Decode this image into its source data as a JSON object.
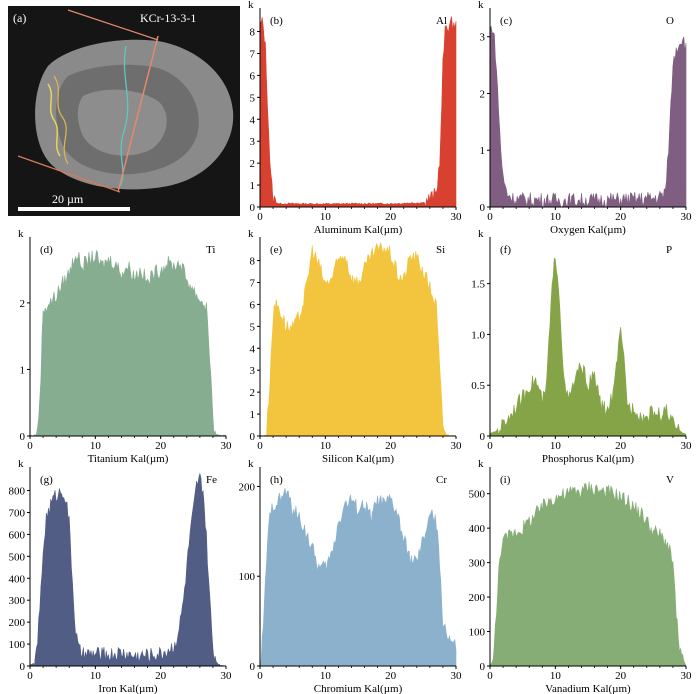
{
  "sample_label": "KCr-13-3-1",
  "scale_bar_label": "20 µm",
  "panel_a_letter": "(a)",
  "colors": {
    "al": "#d8412f",
    "o": "#7f5e81",
    "ti": "#87ad91",
    "si": "#f3c43d",
    "p": "#85a447",
    "fe": "#525d86",
    "cr": "#8cb1cc",
    "v": "#86ad75"
  },
  "chart_data": [
    {
      "id": "b",
      "letter": "(b)",
      "element": "Al",
      "type": "area",
      "xlabel": "Aluminum Kal(µm)",
      "ylabel": "k",
      "xlim": [
        0,
        30
      ],
      "ylim": [
        0,
        8.8
      ],
      "xticks": [
        0,
        10,
        20,
        30
      ],
      "yticks": [
        0,
        1,
        2,
        3,
        4,
        5,
        6,
        7,
        8
      ],
      "ytick_labels": [
        "0",
        "1",
        "2",
        "3",
        "4",
        "5",
        "6",
        "7",
        "8"
      ],
      "color_key": "al",
      "x": [
        0,
        0.4,
        0.8,
        1.2,
        1.6,
        2,
        2.5,
        3,
        5,
        10,
        15,
        20,
        25,
        27,
        27.6,
        28,
        28.4,
        28.8,
        29.2,
        29.6,
        30
      ],
      "y": [
        8.3,
        8.4,
        7.5,
        4.5,
        1.5,
        0.4,
        0.2,
        0.15,
        0.15,
        0.14,
        0.15,
        0.15,
        0.2,
        0.6,
        2.5,
        6.5,
        8.2,
        8.3,
        8.3,
        8.4,
        8.3
      ]
    },
    {
      "id": "c",
      "letter": "(c)",
      "element": "O",
      "type": "area",
      "xlabel": "Oxygen Kal(µm)",
      "ylabel": "k",
      "xlim": [
        0,
        30
      ],
      "ylim": [
        0,
        3.4
      ],
      "xticks": [
        0,
        10,
        20,
        30
      ],
      "yticks": [
        0,
        1,
        2,
        3
      ],
      "ytick_labels": [
        "0",
        "1",
        "2",
        "3"
      ],
      "color_key": "o",
      "x": [
        0,
        0.4,
        0.8,
        1.2,
        1.6,
        2,
        2.6,
        3.5,
        5,
        10,
        15,
        20,
        25,
        26.5,
        27,
        27.5,
        28,
        28.5,
        29,
        29.5,
        30
      ],
      "y": [
        3.1,
        3.2,
        2.8,
        2.0,
        1.1,
        0.5,
        0.25,
        0.15,
        0.13,
        0.12,
        0.12,
        0.13,
        0.15,
        0.2,
        0.4,
        1.4,
        2.5,
        2.8,
        2.9,
        3.0,
        2.8
      ]
    },
    {
      "id": "d",
      "letter": "(d)",
      "element": "Ti",
      "type": "area",
      "xlabel": "Titanium Kal(µm)",
      "ylabel": "k",
      "xlim": [
        0,
        30
      ],
      "ylim": [
        0,
        2.9
      ],
      "xticks": [
        0,
        10,
        20,
        30
      ],
      "yticks": [
        0,
        1,
        2
      ],
      "ytick_labels": [
        "0",
        "1",
        "2"
      ],
      "color_key": "ti",
      "x": [
        0,
        1,
        1.5,
        2,
        3,
        4,
        5,
        6,
        7,
        8,
        9,
        10,
        11,
        12,
        13,
        14,
        15,
        16,
        17,
        18,
        19,
        20,
        21,
        22,
        23,
        24,
        25,
        26,
        27,
        27.5,
        28,
        28.5,
        30
      ],
      "y": [
        0,
        0.02,
        0.5,
        1.9,
        2.0,
        2.1,
        2.3,
        2.45,
        2.75,
        2.55,
        2.65,
        2.7,
        2.55,
        2.65,
        2.6,
        2.45,
        2.55,
        2.4,
        2.5,
        2.3,
        2.45,
        2.5,
        2.6,
        2.55,
        2.6,
        2.35,
        2.2,
        2.05,
        1.95,
        1.2,
        0.2,
        0.02,
        0
      ]
    },
    {
      "id": "e",
      "letter": "(e)",
      "element": "Si",
      "type": "area",
      "xlabel": "Silicon Kal(µm)",
      "ylabel": "k",
      "xlim": [
        0,
        30
      ],
      "ylim": [
        0,
        8.8
      ],
      "xticks": [
        0,
        10,
        20,
        30
      ],
      "yticks": [
        0,
        1,
        2,
        3,
        4,
        5,
        6,
        7,
        8
      ],
      "ytick_labels": [
        "0",
        "1",
        "2",
        "3",
        "4",
        "5",
        "6",
        "7",
        "8"
      ],
      "color_key": "si",
      "x": [
        0,
        1,
        1.5,
        2,
        2.5,
        3,
        4,
        5,
        6,
        7,
        8,
        9,
        10,
        11,
        12,
        13,
        14,
        15,
        16,
        17,
        18,
        19,
        20,
        21,
        22,
        23,
        24,
        25,
        26,
        27,
        27.5,
        28,
        28.5,
        30
      ],
      "y": [
        0,
        0.05,
        2.5,
        5.5,
        6.1,
        5.8,
        5.0,
        4.9,
        5.4,
        6.6,
        8.5,
        7.8,
        6.9,
        7.2,
        8.0,
        8.3,
        7.2,
        7.0,
        7.6,
        8.2,
        8.5,
        8.6,
        8.3,
        7.4,
        7.1,
        8.2,
        8.1,
        7.5,
        6.8,
        5.9,
        3.0,
        0.5,
        0.05,
        0
      ]
    },
    {
      "id": "f",
      "letter": "(f)",
      "element": "P",
      "type": "area",
      "xlabel": "Phosphorus Kal(µm)",
      "ylabel": "k",
      "xlim": [
        0,
        30
      ],
      "ylim": [
        0,
        1.9
      ],
      "xticks": [
        0,
        10,
        20,
        30
      ],
      "yticks": [
        0,
        0.5,
        1,
        1.5
      ],
      "ytick_labels": [
        "0",
        "0.5",
        "1.0",
        "1.5"
      ],
      "color_key": "p",
      "x": [
        0,
        1,
        2,
        3,
        4,
        5,
        6,
        7,
        8,
        8.5,
        9,
        9.5,
        10,
        10.5,
        11,
        11.5,
        12,
        13,
        14,
        15,
        16,
        17,
        18,
        19,
        19.5,
        20,
        20.5,
        21,
        21.5,
        22,
        23,
        24,
        25,
        26,
        27,
        28,
        29,
        30
      ],
      "y": [
        0.02,
        0.05,
        0.12,
        0.2,
        0.3,
        0.38,
        0.5,
        0.55,
        0.35,
        0.4,
        0.9,
        1.45,
        1.8,
        1.5,
        0.9,
        0.45,
        0.35,
        0.55,
        0.7,
        0.5,
        0.6,
        0.3,
        0.25,
        0.45,
        0.8,
        1.0,
        0.75,
        0.35,
        0.25,
        0.3,
        0.2,
        0.18,
        0.25,
        0.2,
        0.25,
        0.12,
        0.05,
        0.02
      ]
    },
    {
      "id": "g",
      "letter": "(g)",
      "element": "Fe",
      "type": "area",
      "xlabel": "Iron Kal(µm)",
      "ylabel": "k",
      "xlim": [
        0,
        30
      ],
      "ylim": [
        0,
        880
      ],
      "xticks": [
        0,
        10,
        20,
        30
      ],
      "yticks": [
        0,
        100,
        200,
        300,
        400,
        500,
        600,
        700,
        800
      ],
      "ytick_labels": [
        "0",
        "100",
        "200",
        "300",
        "400",
        "500",
        "600",
        "700",
        "800"
      ],
      "color_key": "fe",
      "x": [
        0,
        0.5,
        1,
        1.5,
        2,
        2.5,
        3,
        3.5,
        4,
        4.5,
        5,
        5.5,
        6,
        6.5,
        7,
        7.5,
        8,
        10,
        12,
        14,
        16,
        18,
        20,
        21,
        22,
        22.5,
        23,
        23.5,
        24,
        24.5,
        25,
        25.5,
        26,
        26.5,
        27,
        27.5,
        28,
        28.5,
        29,
        30
      ],
      "y": [
        0,
        10,
        60,
        250,
        520,
        680,
        720,
        760,
        780,
        790,
        800,
        760,
        650,
        380,
        150,
        70,
        50,
        55,
        50,
        60,
        45,
        50,
        55,
        70,
        90,
        130,
        200,
        300,
        450,
        600,
        700,
        820,
        850,
        800,
        580,
        300,
        80,
        20,
        5,
        0
      ]
    },
    {
      "id": "h",
      "letter": "(h)",
      "element": "Cr",
      "type": "area",
      "xlabel": "Chromium Kal(µm)",
      "ylabel": "k",
      "xlim": [
        0,
        30
      ],
      "ylim": [
        0,
        215
      ],
      "xticks": [
        0,
        10,
        20,
        30
      ],
      "yticks": [
        0,
        100,
        200
      ],
      "ytick_labels": [
        "0",
        "100",
        "200"
      ],
      "color_key": "cr",
      "x": [
        0,
        0.5,
        1,
        1.5,
        2,
        3,
        4,
        5,
        6,
        7,
        8,
        9,
        10,
        11,
        12,
        13,
        14,
        15,
        16,
        17,
        18,
        19,
        20,
        21,
        22,
        23,
        24,
        25,
        26,
        27,
        27.5,
        28,
        29,
        30
      ],
      "y": [
        0,
        40,
        120,
        165,
        180,
        185,
        195,
        175,
        165,
        150,
        130,
        110,
        110,
        125,
        160,
        180,
        185,
        175,
        180,
        165,
        185,
        180,
        185,
        170,
        140,
        120,
        115,
        140,
        170,
        160,
        110,
        50,
        30,
        20
      ]
    },
    {
      "id": "i",
      "letter": "(i)",
      "element": "V",
      "type": "area",
      "xlabel": "Vanadium Kal(µm)",
      "ylabel": "k",
      "xlim": [
        0,
        30
      ],
      "ylim": [
        0,
        560
      ],
      "xticks": [
        0,
        10,
        20,
        30
      ],
      "yticks": [
        0,
        100,
        200,
        300,
        400,
        500
      ],
      "ytick_labels": [
        "0",
        "100",
        "200",
        "300",
        "400",
        "500"
      ],
      "color_key": "v",
      "x": [
        0,
        0.5,
        1,
        1.5,
        2,
        3,
        4,
        5,
        6,
        7,
        8,
        9,
        10,
        11,
        12,
        13,
        14,
        15,
        16,
        17,
        18,
        19,
        20,
        21,
        22,
        23,
        24,
        25,
        26,
        27,
        28,
        28.5,
        29,
        30
      ],
      "y": [
        0,
        20,
        150,
        330,
        360,
        380,
        390,
        400,
        420,
        440,
        460,
        480,
        490,
        495,
        500,
        510,
        505,
        520,
        515,
        510,
        505,
        500,
        490,
        480,
        460,
        445,
        420,
        390,
        380,
        360,
        300,
        150,
        40,
        0
      ]
    }
  ]
}
